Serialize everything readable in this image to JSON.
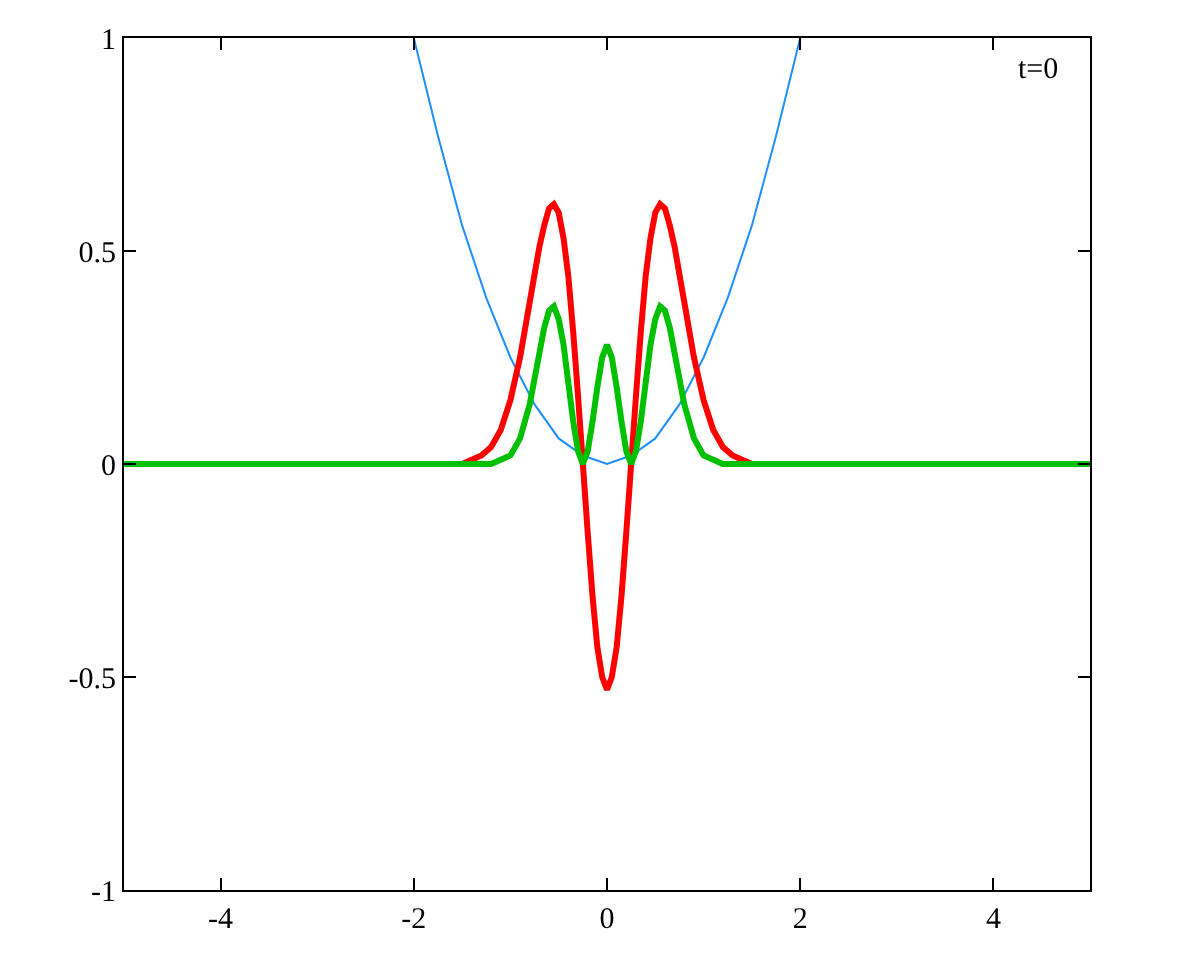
{
  "chart_data": {
    "type": "line",
    "annotations": [
      "t=0"
    ],
    "series": [
      {
        "color": "#1e8fff",
        "x": [
          -2,
          -1.75,
          -1.5,
          -1.25,
          -1,
          -0.75,
          -0.5,
          -0.25,
          0,
          0.25,
          0.5,
          0.75,
          1,
          1.25,
          1.5,
          1.75,
          2
        ],
        "values": [
          1,
          0.77,
          0.56,
          0.39,
          0.25,
          0.14,
          0.06,
          0.02,
          0,
          0.02,
          0.06,
          0.14,
          0.25,
          0.39,
          0.56,
          0.77,
          1
        ]
      },
      {
        "color": "#ff0000",
        "x": [
          -5,
          -1.5,
          -1.4,
          -1.3,
          -1.2,
          -1.1,
          -1,
          -0.9,
          -0.8,
          -0.7,
          -0.65,
          -0.6,
          -0.55,
          -0.5,
          -0.45,
          -0.4,
          -0.35,
          -0.3,
          -0.25,
          -0.2,
          -0.15,
          -0.1,
          -0.05,
          0,
          0.05,
          0.1,
          0.15,
          0.2,
          0.25,
          0.3,
          0.35,
          0.4,
          0.45,
          0.5,
          0.55,
          0.6,
          0.65,
          0.7,
          0.8,
          0.9,
          1,
          1.1,
          1.2,
          1.3,
          1.4,
          1.5,
          5
        ],
        "values": [
          0,
          0,
          0.01,
          0.02,
          0.04,
          0.08,
          0.15,
          0.25,
          0.38,
          0.51,
          0.56,
          0.6,
          0.61,
          0.59,
          0.53,
          0.44,
          0.31,
          0.16,
          0,
          -0.16,
          -0.31,
          -0.43,
          -0.5,
          -0.53,
          -0.5,
          -0.43,
          -0.31,
          -0.16,
          0,
          0.16,
          0.31,
          0.44,
          0.53,
          0.59,
          0.61,
          0.6,
          0.56,
          0.51,
          0.38,
          0.25,
          0.15,
          0.08,
          0.04,
          0.02,
          0.01,
          0,
          0
        ]
      },
      {
        "color": "#00c000",
        "x": [
          -5,
          -1.5,
          -1.4,
          -1.3,
          -1.2,
          -1.1,
          -1,
          -0.9,
          -0.8,
          -0.7,
          -0.65,
          -0.6,
          -0.55,
          -0.5,
          -0.45,
          -0.4,
          -0.35,
          -0.3,
          -0.25,
          -0.2,
          -0.15,
          -0.1,
          -0.05,
          0,
          0.05,
          0.1,
          0.15,
          0.2,
          0.25,
          0.3,
          0.35,
          0.4,
          0.45,
          0.5,
          0.55,
          0.6,
          0.65,
          0.7,
          0.8,
          0.9,
          1,
          1.1,
          1.2,
          1.3,
          1.4,
          1.5,
          5
        ],
        "values": [
          0,
          0,
          0,
          0,
          0,
          0.01,
          0.02,
          0.06,
          0.14,
          0.26,
          0.32,
          0.36,
          0.37,
          0.34,
          0.28,
          0.19,
          0.1,
          0.03,
          0,
          0.03,
          0.1,
          0.18,
          0.25,
          0.28,
          0.25,
          0.18,
          0.1,
          0.03,
          0,
          0.03,
          0.1,
          0.19,
          0.28,
          0.34,
          0.37,
          0.36,
          0.32,
          0.26,
          0.14,
          0.06,
          0.02,
          0.01,
          0,
          0,
          0,
          0,
          0
        ]
      }
    ],
    "xlim": [
      -5,
      5
    ],
    "xticks": [
      -4,
      -2,
      0,
      2,
      4
    ],
    "ylim": [
      -1,
      1
    ],
    "yticks": [
      -1,
      -0.5,
      0,
      0.5,
      1
    ],
    "marker": "none",
    "line_style": "solid"
  }
}
